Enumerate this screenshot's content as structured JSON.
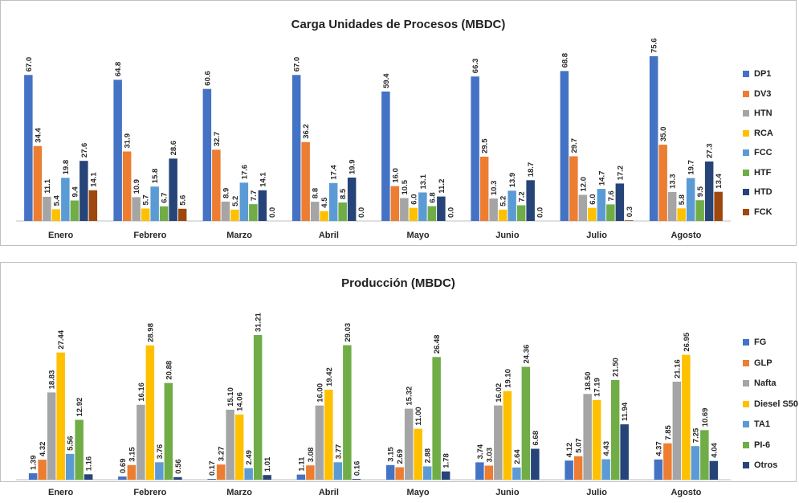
{
  "chart_data": [
    {
      "type": "bar",
      "title": "Carga Unidades de Procesos (MBDC)",
      "categories": [
        "Enero",
        "Febrero",
        "Marzo",
        "Abril",
        "Mayo",
        "Junio",
        "Julio",
        "Agosto"
      ],
      "ylim": [
        0,
        80
      ],
      "legend": "right",
      "grid": false,
      "series": [
        {
          "name": "DP1",
          "color": "#4472C4",
          "values": [
            67.0,
            64.8,
            60.6,
            67.0,
            59.4,
            66.3,
            68.8,
            75.6
          ],
          "labels": [
            "67.0",
            "64.8",
            "60.6",
            "67.0",
            "59.4",
            "66.3",
            "68.8",
            "75.6"
          ]
        },
        {
          "name": "DV3",
          "color": "#ED7D31",
          "values": [
            34.4,
            31.9,
            32.7,
            36.2,
            16.0,
            29.5,
            29.7,
            35.0
          ],
          "labels": [
            "34.4",
            "31.9",
            "32.7",
            "36.2",
            "16.0",
            "29.5",
            "29.7",
            "35.0"
          ]
        },
        {
          "name": "HTN",
          "color": "#A5A5A5",
          "values": [
            11.1,
            10.9,
            8.9,
            8.8,
            10.5,
            10.3,
            12.0,
            13.3
          ],
          "labels": [
            "11.1",
            "10.9",
            "8.9",
            "8.8",
            "10.5",
            "10.3",
            "12.0",
            "13.3"
          ]
        },
        {
          "name": "RCA",
          "color": "#FFC000",
          "values": [
            5.4,
            5.7,
            5.2,
            4.5,
            6.0,
            5.2,
            6.0,
            5.8
          ],
          "labels": [
            "5.4",
            "5.7",
            "5.2",
            "4.5",
            "6.0",
            "5.2",
            "6.0",
            "5.8"
          ]
        },
        {
          "name": "FCC",
          "color": "#5B9BD5",
          "values": [
            19.8,
            15.8,
            17.6,
            17.4,
            13.1,
            13.9,
            14.7,
            19.7
          ],
          "labels": [
            "19.8",
            "15.8",
            "17.6",
            "17.4",
            "13.1",
            "13.9",
            "14.7",
            "19.7"
          ]
        },
        {
          "name": "HTF",
          "color": "#70AD47",
          "values": [
            9.4,
            6.7,
            7.7,
            8.5,
            6.8,
            7.2,
            7.6,
            9.5
          ],
          "labels": [
            "9.4",
            "6.7",
            "7.7",
            "8.5",
            "6.8",
            "7.2",
            "7.6",
            "9.5"
          ]
        },
        {
          "name": "HTD",
          "color": "#264478",
          "values": [
            27.6,
            28.6,
            14.1,
            19.9,
            11.2,
            18.7,
            17.2,
            27.3
          ],
          "labels": [
            "27.6",
            "28.6",
            "14.1",
            "19.9",
            "11.2",
            "18.7",
            "17.2",
            "27.3"
          ]
        },
        {
          "name": "FCK",
          "color": "#9E480E",
          "values": [
            14.1,
            5.6,
            0.0,
            0.0,
            0.0,
            0.0,
            0.3,
            13.4
          ],
          "labels": [
            "14.1",
            "5.6",
            "0.0",
            "0.0",
            "0.0",
            "0.0",
            "0.3",
            "13.4"
          ]
        }
      ]
    },
    {
      "type": "bar",
      "title": "Producción (MBDC)",
      "categories": [
        "Enero",
        "Febrero",
        "Marzo",
        "Abril",
        "Mayo",
        "Junio",
        "Julio",
        "Agosto"
      ],
      "ylim": [
        0,
        33
      ],
      "legend": "right",
      "grid": false,
      "series": [
        {
          "name": "FG",
          "color": "#4472C4",
          "values": [
            1.39,
            0.69,
            0.17,
            1.11,
            3.15,
            3.74,
            4.12,
            4.37
          ],
          "labels": [
            "1.39",
            "0.69",
            "0.17",
            "1.11",
            "3.15",
            "3.74",
            "4.12",
            "4.37"
          ]
        },
        {
          "name": "GLP",
          "color": "#ED7D31",
          "values": [
            4.32,
            3.15,
            3.27,
            3.08,
            2.69,
            3.03,
            5.07,
            7.85
          ],
          "labels": [
            "4.32",
            "3.15",
            "3.27",
            "3.08",
            "2.69",
            "3.03",
            "5.07",
            "7.85"
          ]
        },
        {
          "name": "Nafta",
          "color": "#A5A5A5",
          "values": [
            18.83,
            16.16,
            15.1,
            16.0,
            15.32,
            16.02,
            18.5,
            21.16
          ],
          "labels": [
            "18.83",
            "16.16",
            "15.10",
            "16.00",
            "15.32",
            "16.02",
            "18.50",
            "21.16"
          ]
        },
        {
          "name": "Diesel S50",
          "color": "#FFC000",
          "values": [
            27.44,
            28.98,
            14.06,
            19.42,
            11.0,
            19.1,
            17.19,
            26.95
          ],
          "labels": [
            "27.44",
            "28.98",
            "14.06",
            "19.42",
            "11.00",
            "19.10",
            "17.19",
            "26.95"
          ]
        },
        {
          "name": "TA1",
          "color": "#5B9BD5",
          "values": [
            5.56,
            3.76,
            2.49,
            3.77,
            2.88,
            2.64,
            4.43,
            7.25
          ],
          "labels": [
            "5.56",
            "3.76",
            "2.49",
            "3.77",
            "2.88",
            "2.64",
            "4.43",
            "7.25"
          ]
        },
        {
          "name": "PI-6",
          "color": "#70AD47",
          "values": [
            12.92,
            20.88,
            31.21,
            29.03,
            26.48,
            24.36,
            21.5,
            10.69
          ],
          "labels": [
            "12.92",
            "20.88",
            "31.21",
            "29.03",
            "26.48",
            "24.36",
            "21.50",
            "10.69"
          ]
        },
        {
          "name": "Otros",
          "color": "#264478",
          "values": [
            1.16,
            0.56,
            1.01,
            0.16,
            1.78,
            6.68,
            11.94,
            4.04
          ],
          "labels": [
            "1.16",
            "0.56",
            "1.01",
            "0.16",
            "1.78",
            "6.68",
            "11.94",
            "4.04"
          ]
        }
      ]
    }
  ]
}
